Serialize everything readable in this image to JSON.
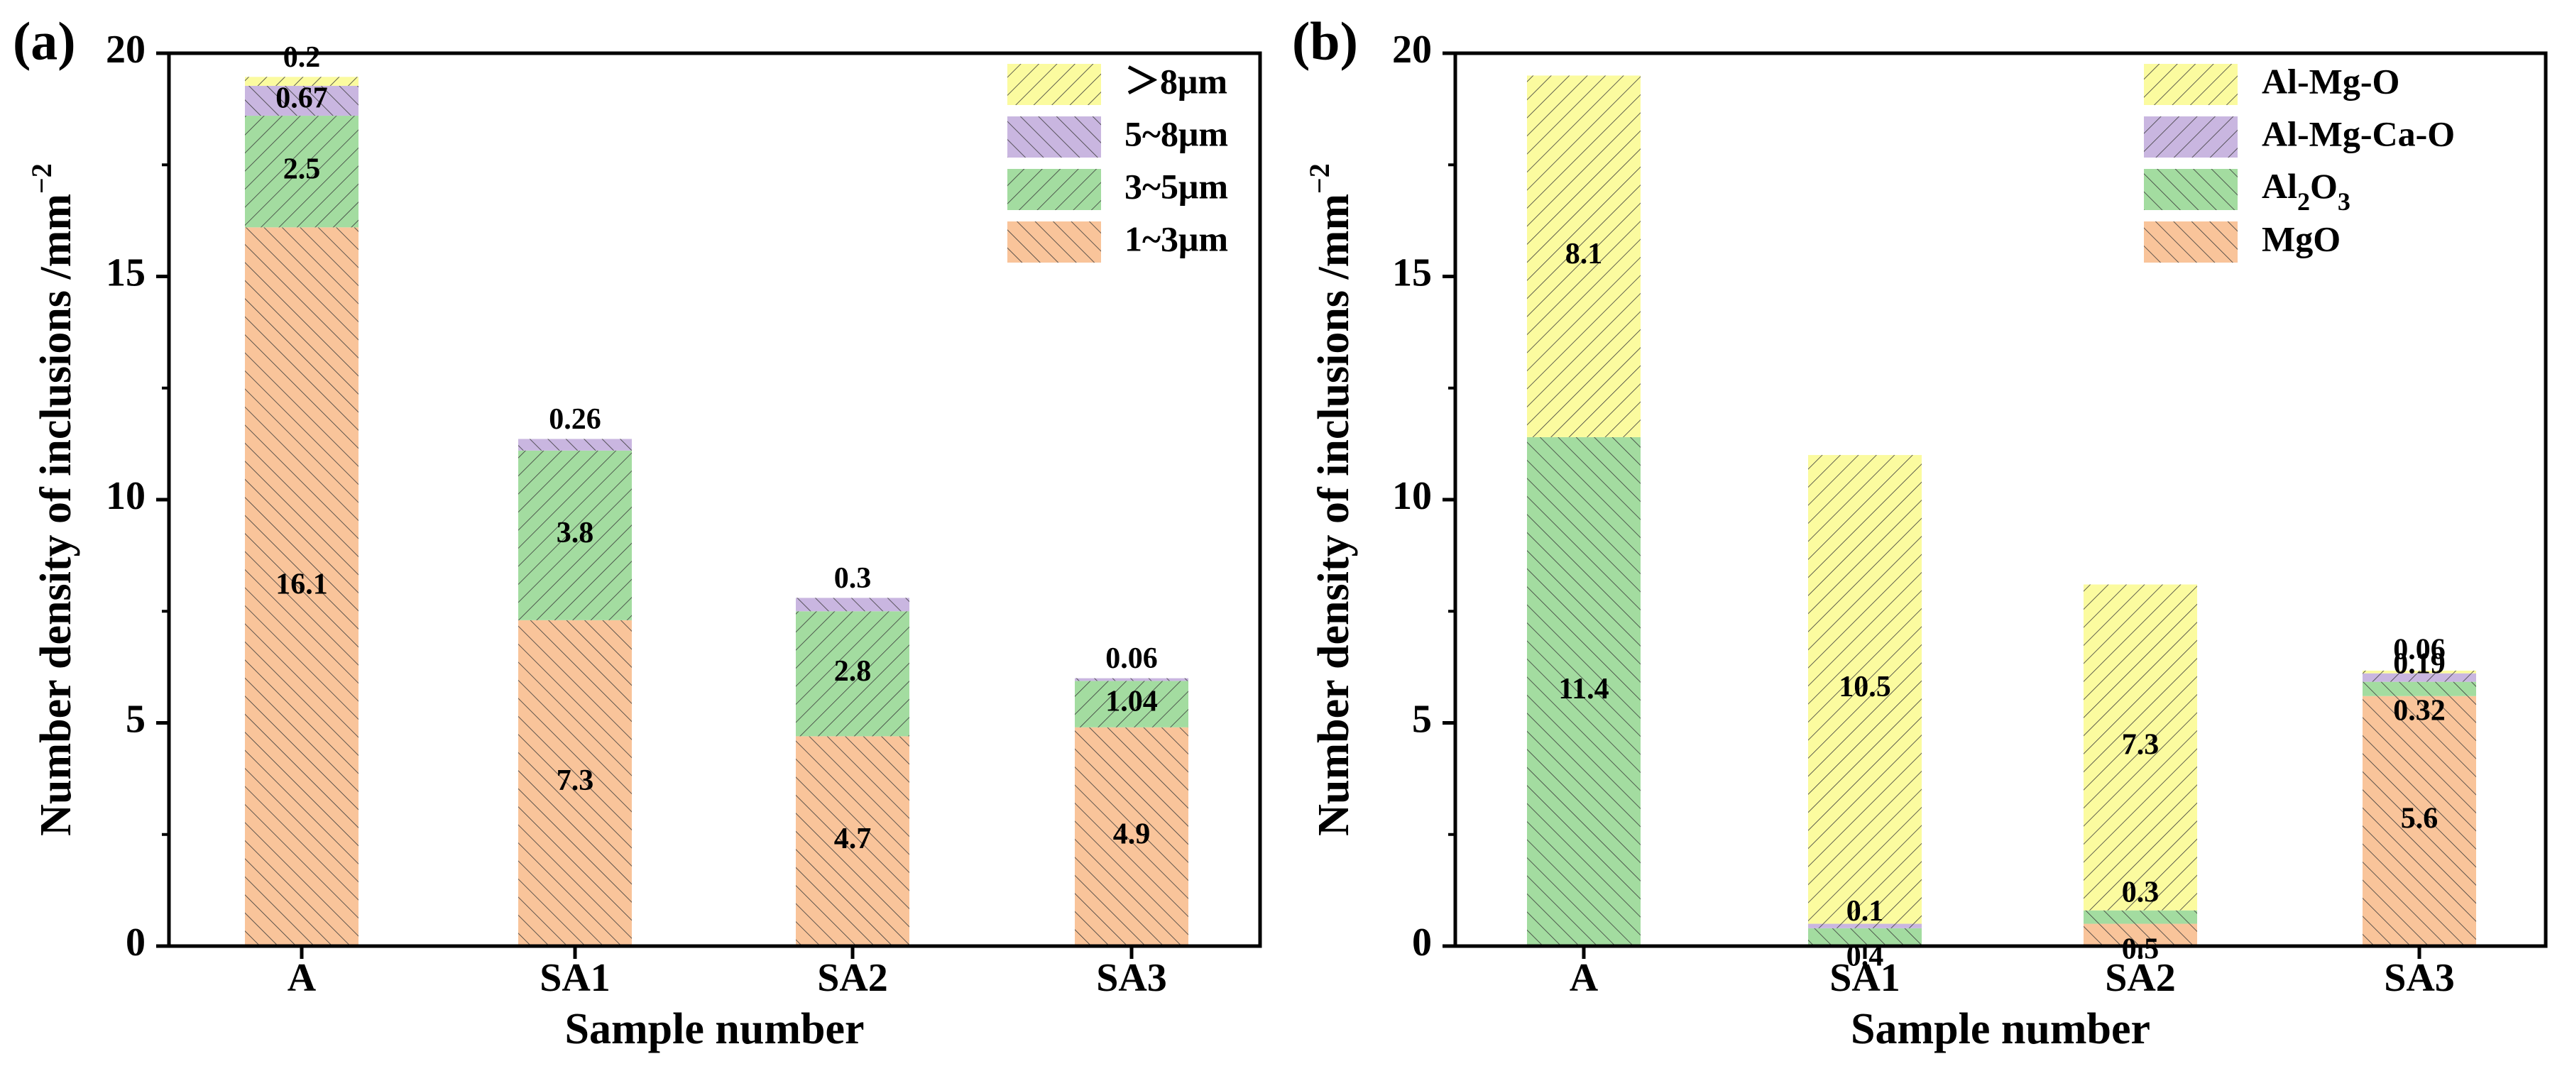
{
  "colors": {
    "gt8": "#fbfb9f",
    "5to8": "#c9b6e0",
    "3to5": "#a3dca0",
    "1to3": "#f9c49a",
    "almgo": "#fbfb9f",
    "almgcao": "#c9b6e0",
    "al2o3": "#a3dca0",
    "mgo": "#f9c49a"
  },
  "chart_data": [
    {
      "type": "bar",
      "stacked": true,
      "panel_label": "(a)",
      "xlabel": "Sample number",
      "ylabel": "Number density of inclusions /mm",
      "ylabel_sup": "−2",
      "ylim": [
        0,
        20
      ],
      "yticks": [
        "0",
        "5",
        "10",
        "15",
        "20"
      ],
      "categories": [
        "A",
        "SA1",
        "SA2",
        "SA3"
      ],
      "legend_position": "top-right",
      "series": [
        {
          "name": "1~3μm",
          "color_key": "1to3",
          "values": [
            16.1,
            7.3,
            4.7,
            4.9
          ],
          "labels": [
            "16.1",
            "7.3",
            "4.7",
            "4.9"
          ]
        },
        {
          "name": "3~5μm",
          "color_key": "3to5",
          "values": [
            2.5,
            3.8,
            2.8,
            1.04
          ],
          "labels": [
            "2.5",
            "3.8",
            "2.8",
            "1.04"
          ]
        },
        {
          "name": "5~8μm",
          "color_key": "5to8",
          "values": [
            0.67,
            0.26,
            0.3,
            0.06
          ],
          "labels": [
            "0.67",
            "",
            "",
            ""
          ]
        },
        {
          "name": "＞8μm",
          "color_key": "gt8",
          "values": [
            0.2,
            0.0,
            0.0,
            0.0
          ],
          "labels": [
            "",
            "",
            "",
            ""
          ]
        }
      ],
      "top_labels": [
        "0.2",
        "0.26",
        "0.3",
        "0.06"
      ]
    },
    {
      "type": "bar",
      "stacked": true,
      "panel_label": "(b)",
      "xlabel": "Sample number",
      "ylabel": "Number density of inclusions /mm",
      "ylabel_sup": "−2",
      "ylim": [
        0,
        20
      ],
      "yticks": [
        "0",
        "5",
        "10",
        "15",
        "20"
      ],
      "categories": [
        "A",
        "SA1",
        "SA2",
        "SA3"
      ],
      "legend_position": "top-right",
      "series": [
        {
          "name": "MgO",
          "color_key": "mgo",
          "values": [
            0,
            0,
            0.5,
            5.6
          ],
          "labels": [
            "",
            "",
            "0.5",
            "5.6"
          ]
        },
        {
          "name": "Al2O3",
          "name_main": "Al",
          "name_sub": "2",
          "name_tail": "O",
          "name_sub2": "3",
          "color_key": "al2o3",
          "values": [
            11.4,
            0.4,
            0.3,
            0.32
          ],
          "labels": [
            "11.4",
            "0.4",
            "0.3",
            "0.32"
          ]
        },
        {
          "name": "Al-Mg-Ca-O",
          "color_key": "almgcao",
          "values": [
            0,
            0.1,
            0,
            0.19
          ],
          "labels": [
            "",
            "0.1",
            "",
            "0.19"
          ]
        },
        {
          "name": "Al-Mg-O",
          "color_key": "almgo",
          "values": [
            8.1,
            10.5,
            7.3,
            0.06
          ],
          "labels": [
            "8.1",
            "10.5",
            "7.3",
            "0.06"
          ]
        }
      ]
    }
  ]
}
